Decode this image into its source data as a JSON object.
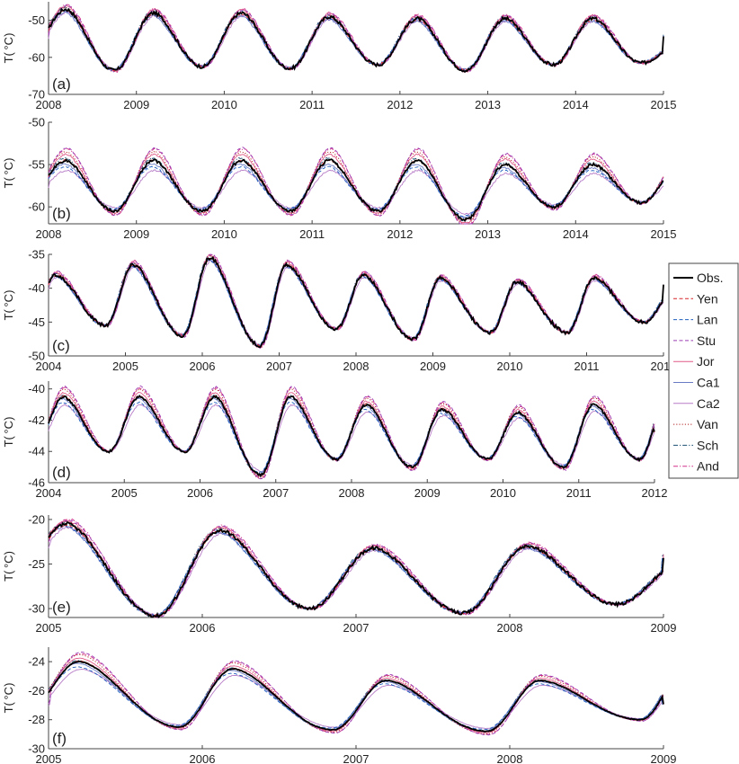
{
  "figure": {
    "ylabel_prefix": "T(",
    "ylabel_unit": "°C",
    "ylabel_suffix": ")"
  },
  "legend": {
    "placement": "right, beside panels (c) and (d)",
    "entries": [
      {
        "name": "Obs.",
        "color": "#000000",
        "dash": "solid",
        "bold": true
      },
      {
        "name": "Yen",
        "color": "#d62728",
        "dash": "dash"
      },
      {
        "name": "Lan",
        "color": "#1f5fbf",
        "dash": "dash"
      },
      {
        "name": "Stu",
        "color": "#9b3db3",
        "dash": "dash"
      },
      {
        "name": "Jor",
        "color": "#e05a87",
        "dash": "solid"
      },
      {
        "name": "Ca1",
        "color": "#6a7bc4",
        "dash": "solid"
      },
      {
        "name": "Ca2",
        "color": "#b77cc7",
        "dash": "solid"
      },
      {
        "name": "Van",
        "color": "#b22222",
        "dash": "dot"
      },
      {
        "name": "Sch",
        "color": "#1b4f72",
        "dash": "dashdot"
      },
      {
        "name": "And",
        "color": "#d0308a",
        "dash": "dashdot"
      }
    ]
  },
  "chart_data": [
    {
      "panel": "(a)",
      "type": "line",
      "x_range": [
        2008,
        2015
      ],
      "ylim": [
        -70,
        -45
      ],
      "x_ticks": [
        "2008",
        "2009",
        "2010",
        "2011",
        "2012",
        "2013",
        "2014",
        "2015"
      ],
      "y_ticks": [
        -70,
        -60,
        -50
      ],
      "cycle": {
        "start": 2008.0,
        "period": 1.0,
        "peak_phase": 0.2,
        "trough_phase": 0.75
      },
      "peaks": [
        -47,
        -48,
        -48,
        -49,
        -49.5,
        -49.5,
        -49.5
      ],
      "troughs": [
        -63.5,
        -62.5,
        -63,
        -62,
        -63.5,
        -62,
        -61.5
      ],
      "mid_value": -60,
      "spread": 1.0,
      "noise": 0.6
    },
    {
      "panel": "(b)",
      "type": "line",
      "x_range": [
        2008,
        2015
      ],
      "ylim": [
        -62,
        -50
      ],
      "x_ticks": [
        "2008",
        "2009",
        "2010",
        "2011",
        "2012",
        "2013",
        "2014",
        "2015"
      ],
      "y_ticks": [
        -60,
        -55,
        -50
      ],
      "cycle": {
        "start": 2008.0,
        "period": 1.0,
        "peak_phase": 0.2,
        "trough_phase": 0.75
      },
      "peaks": [
        -54.5,
        -54.5,
        -54.5,
        -54.5,
        -54.5,
        -55,
        -55
      ],
      "troughs": [
        -60.5,
        -60.5,
        -60.5,
        -60.5,
        -61.5,
        -60,
        -59.5
      ],
      "mid_value": -59,
      "spread": 2.5,
      "noise": 0.2
    },
    {
      "panel": "(c)",
      "type": "line",
      "x_range": [
        2004,
        2012
      ],
      "ylim": [
        -50,
        -35
      ],
      "x_ticks": [
        "2004",
        "2005",
        "2006",
        "2007",
        "2008",
        "2009",
        "2010",
        "2011",
        "2012"
      ],
      "y_ticks": [
        -50,
        -45,
        -40,
        -35
      ],
      "cycle": {
        "start": 2004.0,
        "period": 1.0,
        "peak_phase": 0.1,
        "trough_phase": 0.75
      },
      "peaks": [
        -38,
        -36.5,
        -35.5,
        -36.5,
        -38,
        -38.5,
        -39,
        -38.5
      ],
      "troughs": [
        -45.5,
        -47,
        -48.5,
        -46,
        -47.5,
        -46.5,
        -46.5,
        -45
      ],
      "mid_value": -45,
      "spread": 0.6,
      "noise": 0.35
    },
    {
      "panel": "(d)",
      "type": "line",
      "x_range": [
        2004,
        2012
      ],
      "ylim": [
        -46,
        -39.5
      ],
      "x_ticks": [
        "2004",
        "2005",
        "2006",
        "2007",
        "2008",
        "2009",
        "2010",
        "2011",
        "2012"
      ],
      "y_ticks": [
        -46,
        -44,
        -42,
        -40
      ],
      "cycle": {
        "start": 2004.0,
        "period": 1.0,
        "peak_phase": 0.2,
        "trough_phase": 0.8
      },
      "peaks": [
        -40.5,
        -40.5,
        -40.5,
        -40.5,
        -41,
        -41.3,
        -41.5,
        -41
      ],
      "troughs": [
        -44,
        -44,
        -45.5,
        -44.5,
        -45,
        -44.5,
        -45,
        -44.5
      ],
      "mid_value": -44,
      "spread": 1.2,
      "noise": 0.1
    },
    {
      "panel": "(e)",
      "type": "line",
      "x_range": [
        2005,
        2009
      ],
      "ylim": [
        -31,
        -19.5
      ],
      "x_ticks": [
        "2005",
        "2006",
        "2007",
        "2008",
        "2009"
      ],
      "y_ticks": [
        -30,
        -25,
        -20
      ],
      "cycle": {
        "start": 2005.0,
        "period": 1.0,
        "peak_phase": 0.12,
        "trough_phase": 0.7
      },
      "peaks": [
        -20.5,
        -21.2,
        -23.2,
        -23
      ],
      "troughs": [
        -30.8,
        -30,
        -30.5,
        -29.5
      ],
      "mid_value": -29,
      "spread": 0.6,
      "noise": 0.25
    },
    {
      "panel": "(f)",
      "type": "line",
      "x_range": [
        2005,
        2009
      ],
      "ylim": [
        -30,
        -23
      ],
      "x_ticks": [
        "2005",
        "2006",
        "2007",
        "2008",
        "2009"
      ],
      "y_ticks": [
        -30,
        -28,
        -26,
        -24
      ],
      "cycle": {
        "start": 2005.0,
        "period": 1.0,
        "peak_phase": 0.2,
        "trough_phase": 0.85
      },
      "peaks": [
        -24,
        -24.5,
        -25.3,
        -25.3
      ],
      "troughs": [
        -28.5,
        -28.7,
        -28.8,
        -28
      ],
      "mid_value": -27.5,
      "spread": 1.2,
      "noise": 0.03
    }
  ]
}
